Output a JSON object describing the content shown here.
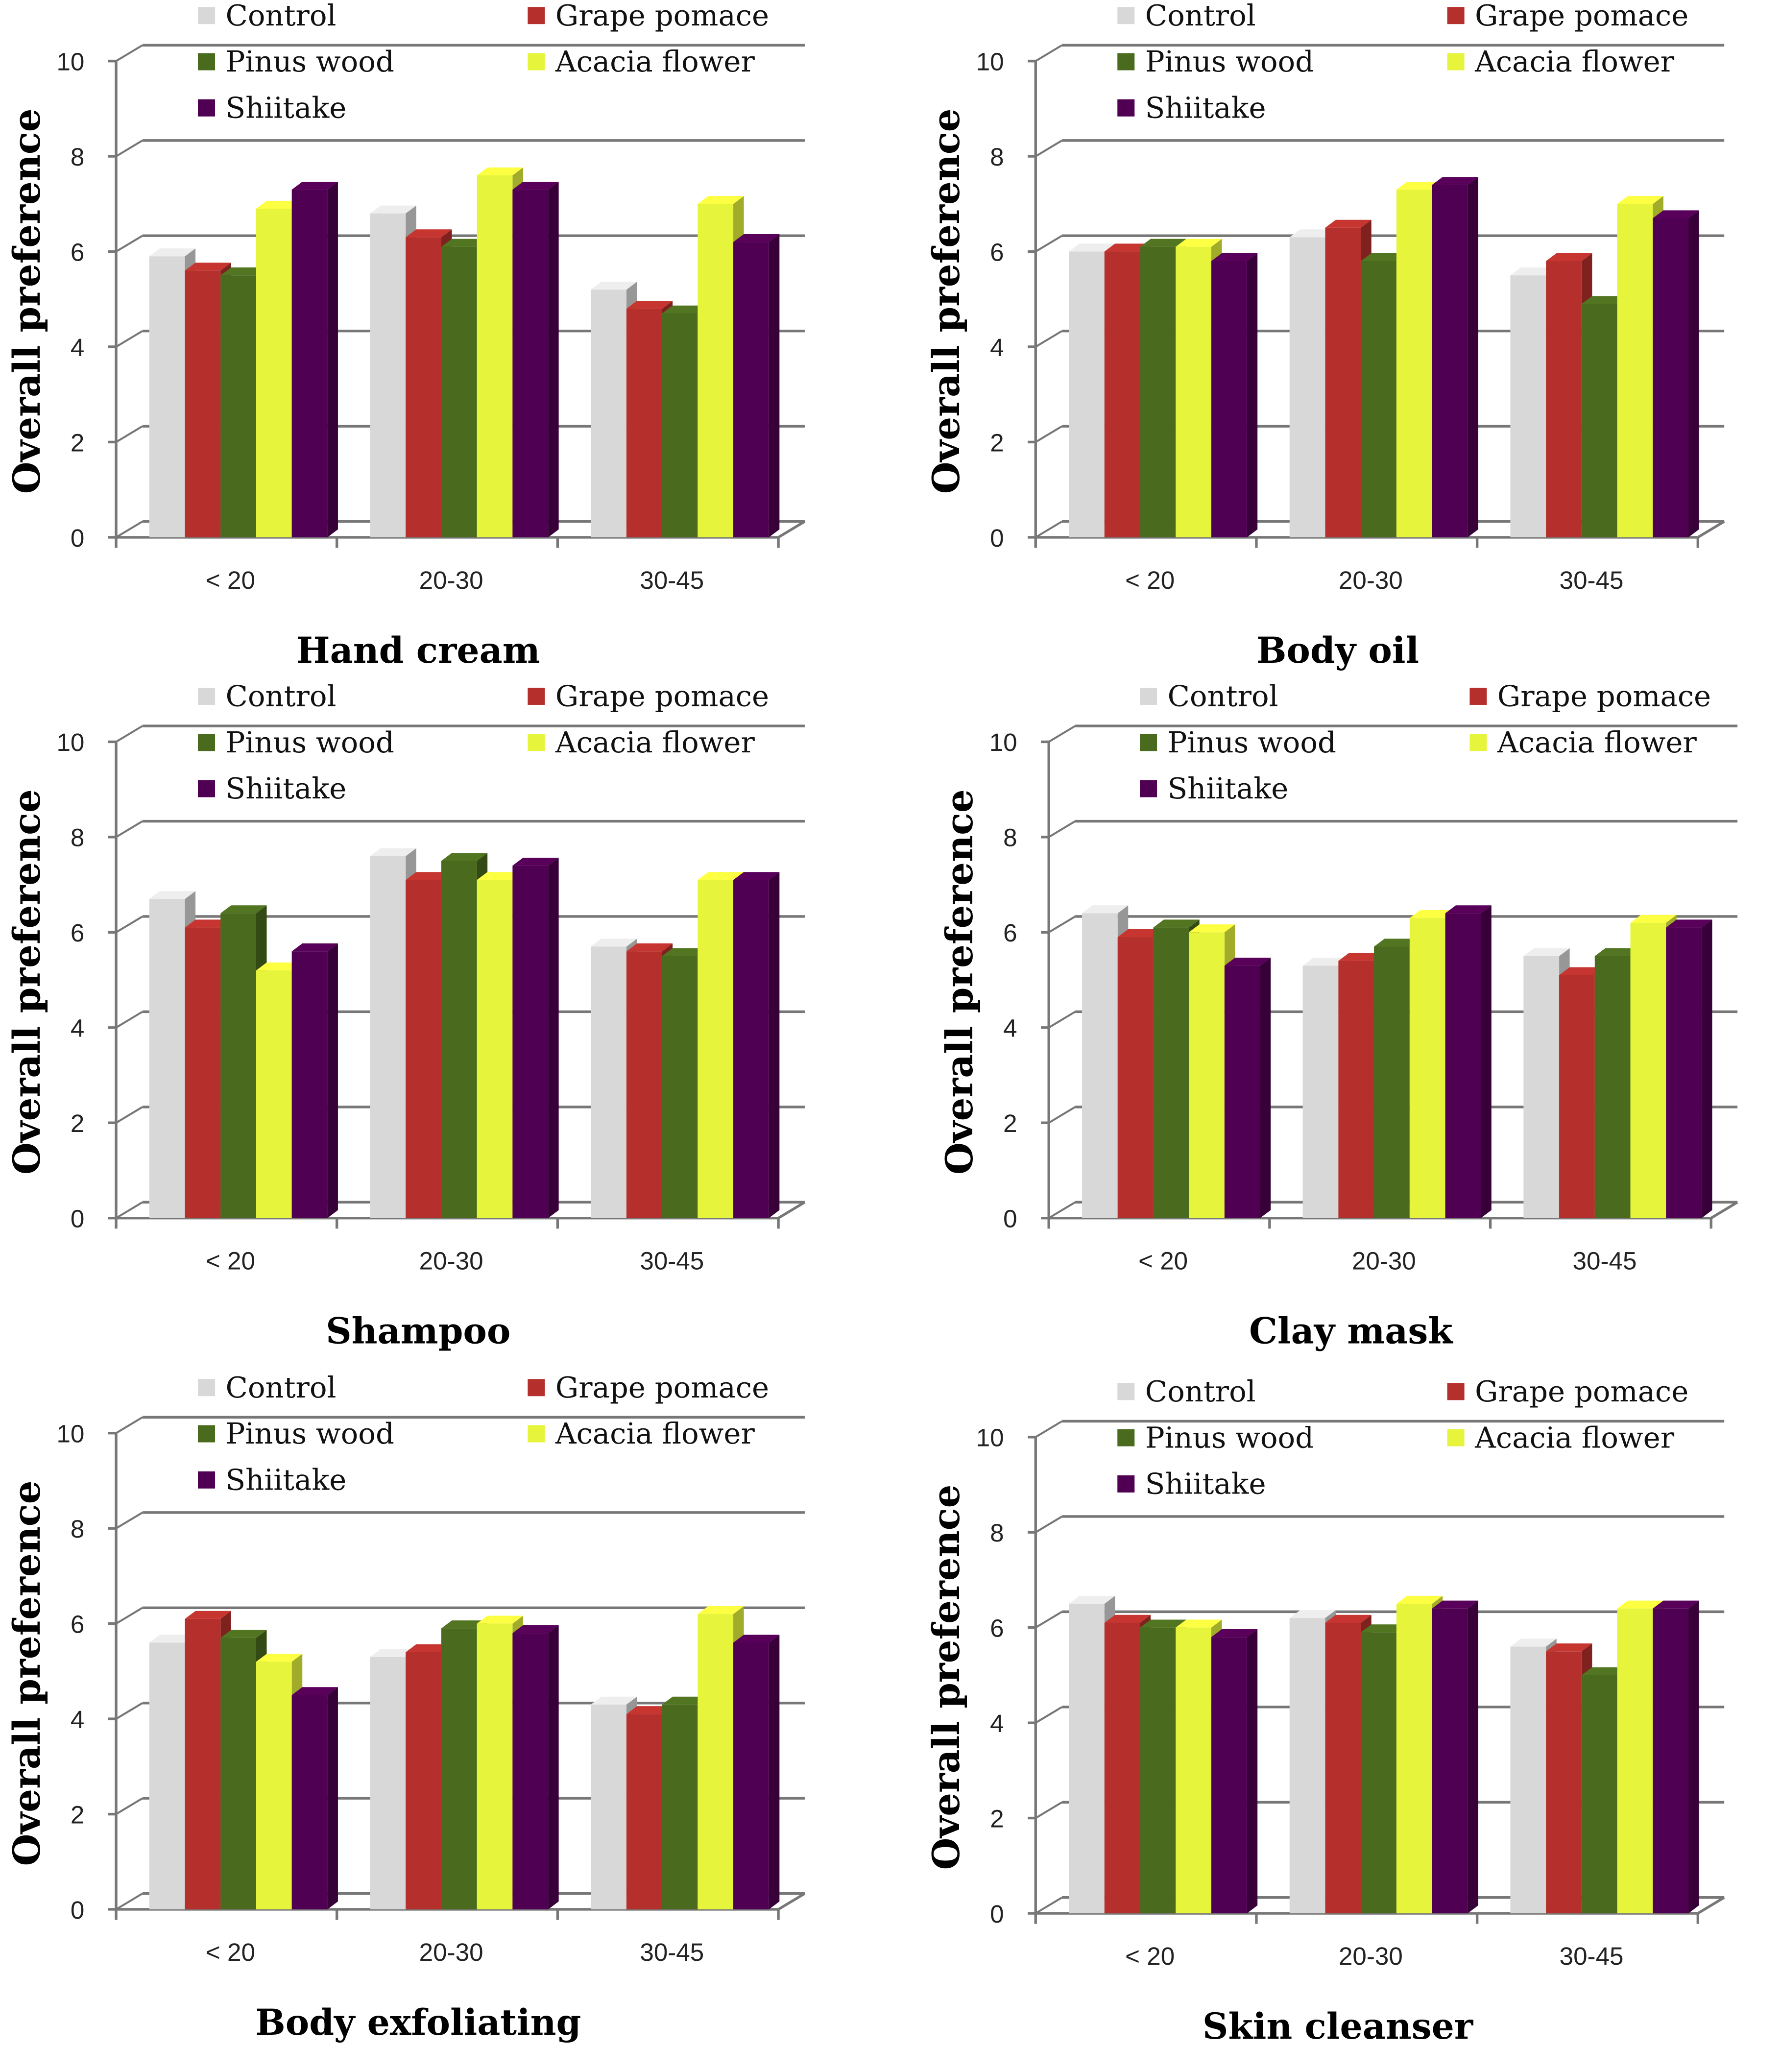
{
  "chart_data": [
    {
      "type": "bar",
      "title": "Hand cream",
      "ylabel": "Overall  preference",
      "xlabel": "",
      "ylim": [
        0,
        10
      ],
      "yticks": [
        0,
        2,
        4,
        6,
        8,
        10
      ],
      "categories": [
        "< 20",
        "20-30",
        "30-45"
      ],
      "series": [
        {
          "name": "Control",
          "values": [
            5.9,
            6.8,
            5.2
          ]
        },
        {
          "name": "Grape pomace",
          "values": [
            5.6,
            6.3,
            4.8
          ]
        },
        {
          "name": "Pinus wood",
          "values": [
            5.5,
            6.1,
            4.7
          ]
        },
        {
          "name": "Acacia flower",
          "values": [
            6.9,
            7.6,
            7.0
          ]
        },
        {
          "name": "Shiitake",
          "values": [
            7.3,
            7.3,
            6.2
          ]
        }
      ]
    },
    {
      "type": "bar",
      "title": "Body oil",
      "ylabel": "Overall  preference",
      "xlabel": "",
      "ylim": [
        0,
        10
      ],
      "yticks": [
        0,
        2,
        4,
        6,
        8,
        10
      ],
      "categories": [
        "< 20",
        "20-30",
        "30-45"
      ],
      "series": [
        {
          "name": "Control",
          "values": [
            6.0,
            6.3,
            5.5
          ]
        },
        {
          "name": "Grape pomace",
          "values": [
            6.0,
            6.5,
            5.8
          ]
        },
        {
          "name": "Pinus wood",
          "values": [
            6.1,
            5.8,
            4.9
          ]
        },
        {
          "name": "Acacia flower",
          "values": [
            6.1,
            7.3,
            7.0
          ]
        },
        {
          "name": "Shiitake",
          "values": [
            5.8,
            7.4,
            6.7
          ]
        }
      ]
    },
    {
      "type": "bar",
      "title": "Shampoo",
      "ylabel": "Overall  preference",
      "xlabel": "",
      "ylim": [
        0,
        10
      ],
      "yticks": [
        0,
        2,
        4,
        6,
        8,
        10
      ],
      "categories": [
        "< 20",
        "20-30",
        "30-45"
      ],
      "series": [
        {
          "name": "Control",
          "values": [
            6.7,
            7.6,
            5.7
          ]
        },
        {
          "name": "Grape pomace",
          "values": [
            6.1,
            7.1,
            5.6
          ]
        },
        {
          "name": "Pinus wood",
          "values": [
            6.4,
            7.5,
            5.5
          ]
        },
        {
          "name": "Acacia flower",
          "values": [
            5.2,
            7.1,
            7.1
          ]
        },
        {
          "name": "Shiitake",
          "values": [
            5.6,
            7.4,
            7.1
          ]
        }
      ]
    },
    {
      "type": "bar",
      "title": "Clay mask",
      "ylabel": "Overall  preference",
      "xlabel": "",
      "ylim": [
        0,
        10
      ],
      "yticks": [
        0,
        2,
        4,
        6,
        8,
        10
      ],
      "categories": [
        "< 20",
        "20-30",
        "30-45"
      ],
      "series": [
        {
          "name": "Control",
          "values": [
            6.4,
            5.3,
            5.5
          ]
        },
        {
          "name": "Grape pomace",
          "values": [
            5.9,
            5.4,
            5.1
          ]
        },
        {
          "name": "Pinus wood",
          "values": [
            6.1,
            5.7,
            5.5
          ]
        },
        {
          "name": "Acacia flower",
          "values": [
            6.0,
            6.3,
            6.2
          ]
        },
        {
          "name": "Shiitake",
          "values": [
            5.3,
            6.4,
            6.1
          ]
        }
      ]
    },
    {
      "type": "bar",
      "title": "Body exfoliating",
      "ylabel": "Overall  preference",
      "xlabel": "",
      "ylim": [
        0,
        10
      ],
      "yticks": [
        0,
        2,
        4,
        6,
        8,
        10
      ],
      "categories": [
        "< 20",
        "20-30",
        "30-45"
      ],
      "series": [
        {
          "name": "Control",
          "values": [
            5.6,
            5.3,
            4.3
          ]
        },
        {
          "name": "Grape pomace",
          "values": [
            6.1,
            5.4,
            4.1
          ]
        },
        {
          "name": "Pinus wood",
          "values": [
            5.7,
            5.9,
            4.3
          ]
        },
        {
          "name": "Acacia flower",
          "values": [
            5.2,
            6.0,
            6.2
          ]
        },
        {
          "name": "Shiitake",
          "values": [
            4.5,
            5.8,
            5.6
          ]
        }
      ]
    },
    {
      "type": "bar",
      "title": "Skin cleanser",
      "ylabel": "Overall  preference",
      "xlabel": "",
      "ylim": [
        0,
        10
      ],
      "yticks": [
        0,
        2,
        4,
        6,
        8,
        10
      ],
      "categories": [
        "< 20",
        "20-30",
        "30-45"
      ],
      "series": [
        {
          "name": "Control",
          "values": [
            6.5,
            6.2,
            5.6
          ]
        },
        {
          "name": "Grape pomace",
          "values": [
            6.1,
            6.1,
            5.5
          ]
        },
        {
          "name": "Pinus wood",
          "values": [
            6.0,
            5.9,
            5.0
          ]
        },
        {
          "name": "Acacia flower",
          "values": [
            6.0,
            6.5,
            6.4
          ]
        },
        {
          "name": "Shiitake",
          "values": [
            5.8,
            6.4,
            6.4
          ]
        }
      ]
    }
  ],
  "colors": {
    "Control": "#d8d8d8",
    "Grape pomace": "#b5302c",
    "Pinus wood": "#4a6a1e",
    "Acacia flower": "#e6f53c",
    "Shiitake": "#500052"
  },
  "legend_labels": [
    "Control",
    "Grape pomace",
    "Pinus wood",
    "Acacia flower",
    "Shiitake"
  ]
}
